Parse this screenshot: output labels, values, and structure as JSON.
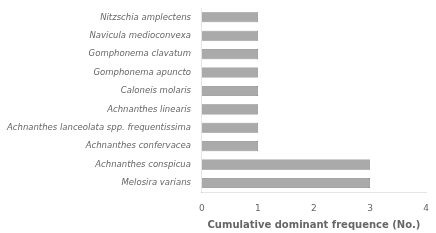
{
  "chart_data": {
    "type": "bar",
    "orientation": "horizontal",
    "categories": [
      "Nitzschia amplectens",
      "Navicula medioconvexa",
      "Gomphonema clavatum",
      "Gomphonema apuncto",
      "Caloneis molaris",
      "Achnanthes linearis",
      "Achnanthes lanceolata spp. frequentissima",
      "Achnanthes confervacea",
      "Achnanthes conspicua",
      "Melosira varians"
    ],
    "values": [
      1,
      1,
      1,
      1,
      1,
      1,
      1,
      1,
      3,
      3
    ],
    "color": "#aaaaaa",
    "xlabel": "Cumulative dominant frequence (No.)",
    "xlim": [
      0,
      4
    ],
    "xticks": [
      0,
      1,
      2,
      3,
      4
    ],
    "grid": false
  }
}
